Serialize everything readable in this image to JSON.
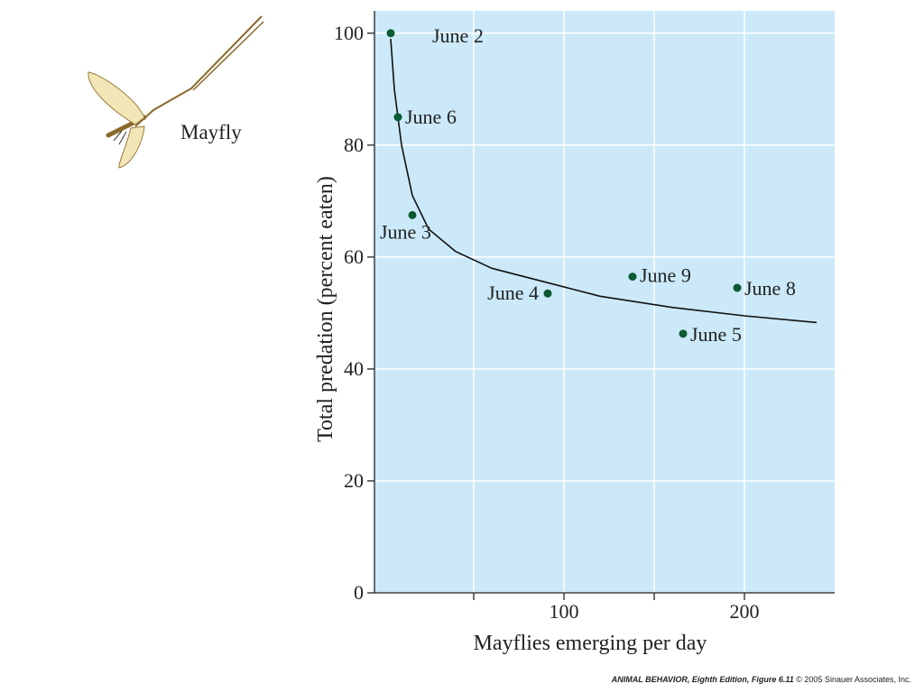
{
  "illustration": {
    "label": "Mayfly",
    "icon": "mayfly-icon"
  },
  "chart_data": {
    "type": "scatter",
    "xlabel": "Mayflies emerging per day",
    "ylabel": "Total predation (percent eaten)",
    "xlim": [
      -5,
      250
    ],
    "ylim": [
      0,
      104
    ],
    "x_ticks": [
      50,
      100,
      150,
      200
    ],
    "x_tick_labels": [
      "",
      "100",
      "",
      "200"
    ],
    "y_ticks": [
      0,
      20,
      40,
      60,
      80,
      100
    ],
    "y_tick_labels": [
      "0",
      "20",
      "40",
      "60",
      "80",
      "100"
    ],
    "grid": true,
    "plot_background": "#cbe9f8",
    "grid_color": "#ffffff",
    "point_color": "#0c5a32",
    "points": [
      {
        "label": "June 2",
        "x": 4,
        "y": 100
      },
      {
        "label": "June 6",
        "x": 8,
        "y": 85
      },
      {
        "label": "June 3",
        "x": 16,
        "y": 67.5
      },
      {
        "label": "June 4",
        "x": 91,
        "y": 53.5
      },
      {
        "label": "June 9",
        "x": 138,
        "y": 56.5
      },
      {
        "label": "June 5",
        "x": 166,
        "y": 46.3
      },
      {
        "label": "June 8",
        "x": 196,
        "y": 54.5
      }
    ],
    "fit_curve": {
      "x": [
        4,
        6,
        10,
        16,
        25,
        40,
        60,
        90,
        120,
        160,
        200,
        240
      ],
      "y": [
        99,
        90,
        80,
        71,
        65,
        61,
        58,
        55.5,
        53,
        51,
        49.5,
        48.3
      ]
    }
  },
  "caption": {
    "book": "ANIMAL BEHAVIOR, Eighth Edition, Figure 6.11",
    "copyright": "© 2005 Sinauer Associates, Inc."
  }
}
